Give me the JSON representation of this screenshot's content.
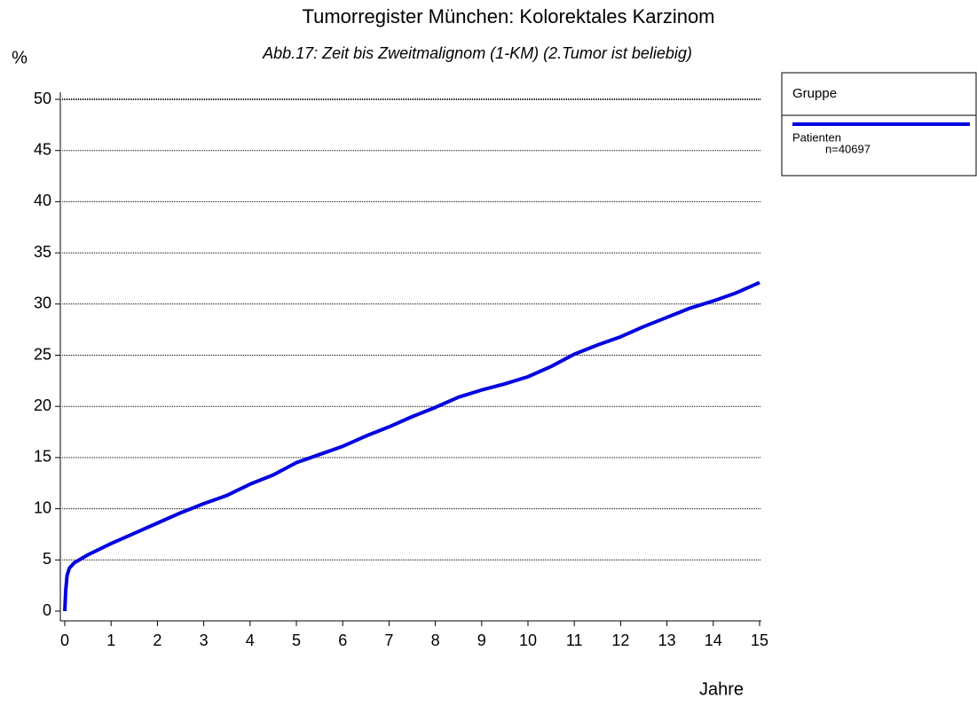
{
  "chart_data": {
    "type": "line",
    "title": "Tumorregister München: Kolorektales Karzinom",
    "subtitle": "Abb.17: Zeit bis Zweitmalignom (1-KM) (2.Tumor ist beliebig)",
    "y_label": "%",
    "x_label": "Jahre",
    "legend_title": "Gruppe",
    "x": [
      0,
      0.02,
      0.05,
      0.1,
      0.2,
      0.5,
      1,
      1.5,
      2,
      2.5,
      3,
      3.5,
      4,
      4.5,
      5,
      5.5,
      6,
      6.5,
      7,
      7.5,
      8,
      8.5,
      9,
      9.5,
      10,
      10.5,
      11,
      11.5,
      12,
      12.5,
      13,
      13.5,
      14,
      14.5,
      15
    ],
    "series": [
      {
        "name": "Patienten",
        "label": "n=40697",
        "color": "#0000e0",
        "values": [
          0,
          2,
          3.5,
          4.2,
          4.7,
          5.5,
          6.6,
          7.6,
          8.6,
          9.6,
          10.5,
          11.3,
          12.4,
          13.3,
          14.5,
          15.3,
          16.1,
          17.1,
          18.0,
          19.0,
          19.9,
          20.9,
          21.6,
          22.2,
          22.9,
          23.9,
          25.1,
          26.0,
          26.8,
          27.8,
          28.7,
          29.6,
          30.3,
          31.1,
          32.1
        ]
      }
    ],
    "xlim": [
      0,
      15
    ],
    "xticks": [
      0,
      1,
      2,
      3,
      4,
      5,
      6,
      7,
      8,
      9,
      10,
      11,
      12,
      13,
      14,
      15
    ],
    "ylim": [
      0,
      50
    ],
    "yticks": [
      0,
      5,
      10,
      15,
      20,
      25,
      30,
      35,
      40,
      45,
      50
    ],
    "grid": true
  }
}
